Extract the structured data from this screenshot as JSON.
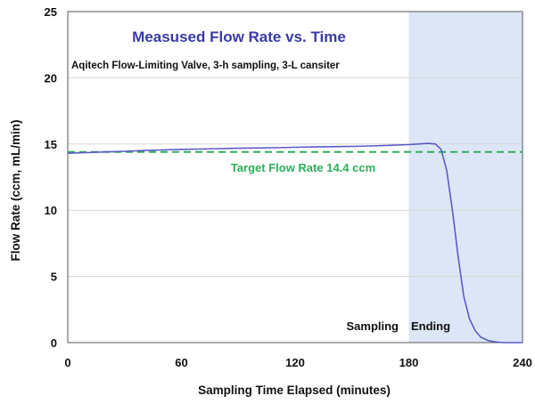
{
  "chart_data": {
    "type": "line",
    "title": "Measused Flow Rate vs. Time",
    "subtitle": "Aqitech Flow-Limiting Valve, 3-h sampling, 3-L cansiter",
    "xlabel": "Sampling Time Elapsed (minutes)",
    "ylabel": "Flow Rate (ccm, mL/min)",
    "xlim": [
      0,
      240
    ],
    "ylim": [
      0,
      25
    ],
    "x_ticks": [
      0,
      60,
      120,
      180,
      240
    ],
    "y_ticks": [
      0,
      5,
      10,
      15,
      20,
      25
    ],
    "grid": "horizontal",
    "series": [
      {
        "color": "#5b5bc8",
        "x": [
          0,
          10,
          20,
          30,
          40,
          50,
          60,
          70,
          80,
          90,
          100,
          110,
          120,
          130,
          140,
          150,
          160,
          170,
          180,
          185,
          190,
          194,
          197,
          200,
          203,
          206,
          209,
          212,
          215,
          218,
          222,
          226,
          230,
          235,
          240
        ],
        "y": [
          14.3,
          14.35,
          14.4,
          14.45,
          14.5,
          14.55,
          14.6,
          14.62,
          14.65,
          14.68,
          14.7,
          14.72,
          14.75,
          14.78,
          14.8,
          14.82,
          14.85,
          14.9,
          14.95,
          15.0,
          15.05,
          15.0,
          14.6,
          13.0,
          10.0,
          6.5,
          3.5,
          1.8,
          0.9,
          0.4,
          0.15,
          0.05,
          0.0,
          0.0,
          0.0
        ]
      }
    ],
    "target_line": {
      "value": 14.4,
      "label": "Target Flow Rate 14.4 ccm",
      "color": "#2fae5b"
    },
    "shaded_region": {
      "x_start": 180,
      "x_end": 240,
      "color": "#dde6f6"
    },
    "region_labels": [
      "Sampling",
      "Ending"
    ]
  }
}
